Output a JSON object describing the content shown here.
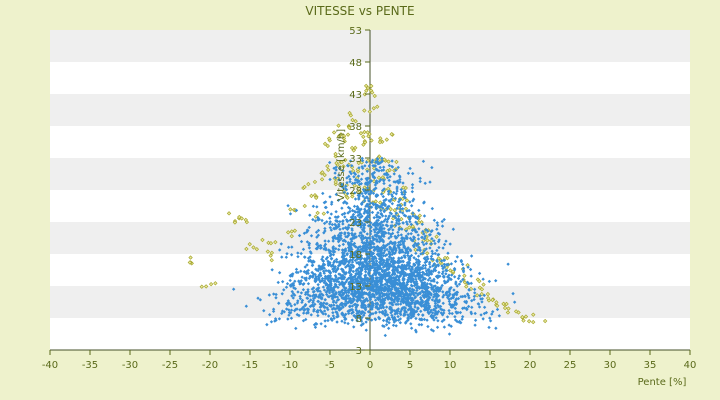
{
  "chart_data": {
    "type": "scatter",
    "title": "VITESSE vs PENTE",
    "xlabel": "Pente [%]",
    "ylabel": "Vitesse [km/h]",
    "xlim": [
      -40,
      40
    ],
    "ylim": [
      3,
      53
    ],
    "xticks": [
      "-40",
      "-35",
      "-30",
      "-25",
      "-20",
      "-15",
      "-10",
      "-5",
      "0",
      "5",
      "10",
      "15",
      "20",
      "25",
      "30",
      "35",
      "40"
    ],
    "yticks": [
      "3",
      "8",
      "13",
      "18",
      "23",
      "28",
      "33",
      "38",
      "43",
      "48",
      "53"
    ],
    "grid": "horizontal alternating bands",
    "legend": "none",
    "series": [
      {
        "color": "#a8a830",
        "marker": "small open diamond",
        "points": [
          [
            -22,
            17
          ],
          [
            -20,
            13
          ],
          [
            -17,
            24
          ],
          [
            -16,
            23
          ],
          [
            -15,
            19
          ],
          [
            -13,
            20
          ],
          [
            -12,
            18
          ],
          [
            -10,
            21
          ],
          [
            -9,
            25
          ],
          [
            -8,
            29
          ],
          [
            -7,
            27
          ],
          [
            -6,
            30
          ],
          [
            -6,
            24
          ],
          [
            -5,
            35
          ],
          [
            -5,
            31
          ],
          [
            -4,
            37
          ],
          [
            -4,
            33
          ],
          [
            -4,
            29
          ],
          [
            -3,
            38
          ],
          [
            -3,
            36
          ],
          [
            -3,
            32
          ],
          [
            -3,
            28
          ],
          [
            -2,
            39
          ],
          [
            -2,
            35
          ],
          [
            -2,
            31
          ],
          [
            -2,
            27
          ],
          [
            -1,
            37
          ],
          [
            -1,
            33
          ],
          [
            -1,
            29
          ],
          [
            0,
            44
          ],
          [
            0,
            43
          ],
          [
            0,
            41
          ],
          [
            0,
            36
          ],
          [
            0,
            32
          ],
          [
            0,
            28
          ],
          [
            1,
            36
          ],
          [
            1,
            33
          ],
          [
            1,
            30
          ],
          [
            1,
            26
          ],
          [
            2,
            36
          ],
          [
            2,
            32
          ],
          [
            2,
            28
          ],
          [
            2,
            25
          ],
          [
            3,
            31
          ],
          [
            3,
            27
          ],
          [
            3,
            24
          ],
          [
            4,
            28
          ],
          [
            4,
            25
          ],
          [
            4,
            22
          ],
          [
            5,
            25
          ],
          [
            5,
            22
          ],
          [
            6,
            23
          ],
          [
            6,
            20
          ],
          [
            7,
            21
          ],
          [
            7,
            18
          ],
          [
            8,
            20
          ],
          [
            8,
            17
          ],
          [
            9,
            17
          ],
          [
            10,
            16
          ],
          [
            11,
            15
          ],
          [
            12,
            14
          ],
          [
            13,
            13
          ],
          [
            14,
            12
          ],
          [
            15,
            11
          ],
          [
            16,
            10
          ],
          [
            17,
            10
          ],
          [
            18,
            9
          ],
          [
            19,
            8
          ],
          [
            20,
            8
          ]
        ]
      },
      {
        "color": "#3a8fd6",
        "marker": "small filled diamond",
        "cloud": {
          "count": 3200,
          "x_range": [
            -23,
            19
          ],
          "y_floor": 5,
          "peak_speed": 33,
          "peak_slope": 0,
          "density_center": [
            1,
            12
          ]
        }
      }
    ]
  }
}
